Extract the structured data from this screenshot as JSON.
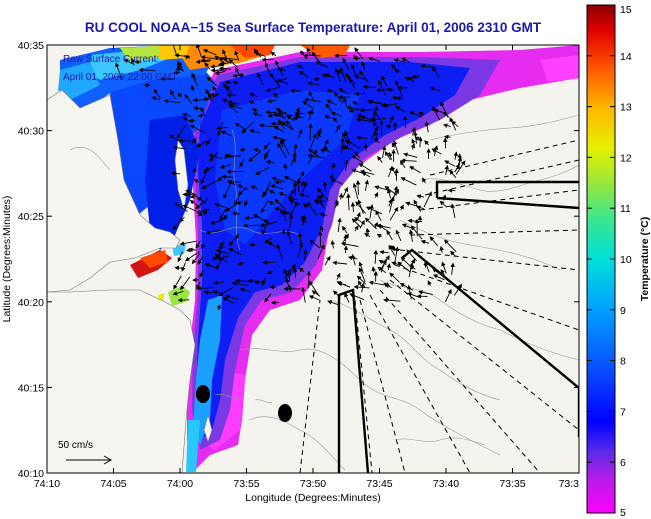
{
  "chart_data": {
    "type": "heatmap",
    "title": "RU COOL  NOAA−15  Sea Surface Temperature:  April 01, 2006 2310 GMT",
    "xlabel": "Longitude (Degrees:Minutes)",
    "ylabel": "Latitude (Degrees:Minutes)",
    "x_ticks": [
      "74:10",
      "74:05",
      "74:00",
      "73:55",
      "73:50",
      "73:45",
      "73:40",
      "73:35",
      "73:3"
    ],
    "y_ticks": [
      "40:35",
      "40:30",
      "40:25",
      "40:20",
      "40:15",
      "40:10"
    ],
    "xlim": [
      -74.1667,
      -73.5
    ],
    "ylim": [
      40.1667,
      40.5833
    ],
    "annotation": [
      "Raw Surface Current:",
      "April 01, 2006 22:00 GMT"
    ],
    "vector_scale_label": "50 cm/s",
    "colorbar": {
      "label": "Temperature (°C)",
      "ticks": [
        "5",
        "6",
        "7",
        "8",
        "9",
        "10",
        "11",
        "12",
        "13",
        "14",
        "15"
      ],
      "range": [
        5,
        15
      ],
      "colormap": [
        "#ff00ff",
        "#7a2ee0",
        "#0000ff",
        "#0a5cff",
        "#00b4ff",
        "#00e6c8",
        "#6ee64a",
        "#e6f000",
        "#ffb400",
        "#ff5000",
        "#e00000",
        "#8b0000"
      ]
    },
    "series": [
      {
        "name": "sea surface temperature",
        "values": "satellite SST field shaded 5–15 °C"
      },
      {
        "name": "surface current vectors",
        "values": "HF radar current arrows"
      }
    ],
    "colors": {
      "title": "#1a1aa8",
      "land": "#f5f3ee",
      "frame": "#000000"
    }
  }
}
